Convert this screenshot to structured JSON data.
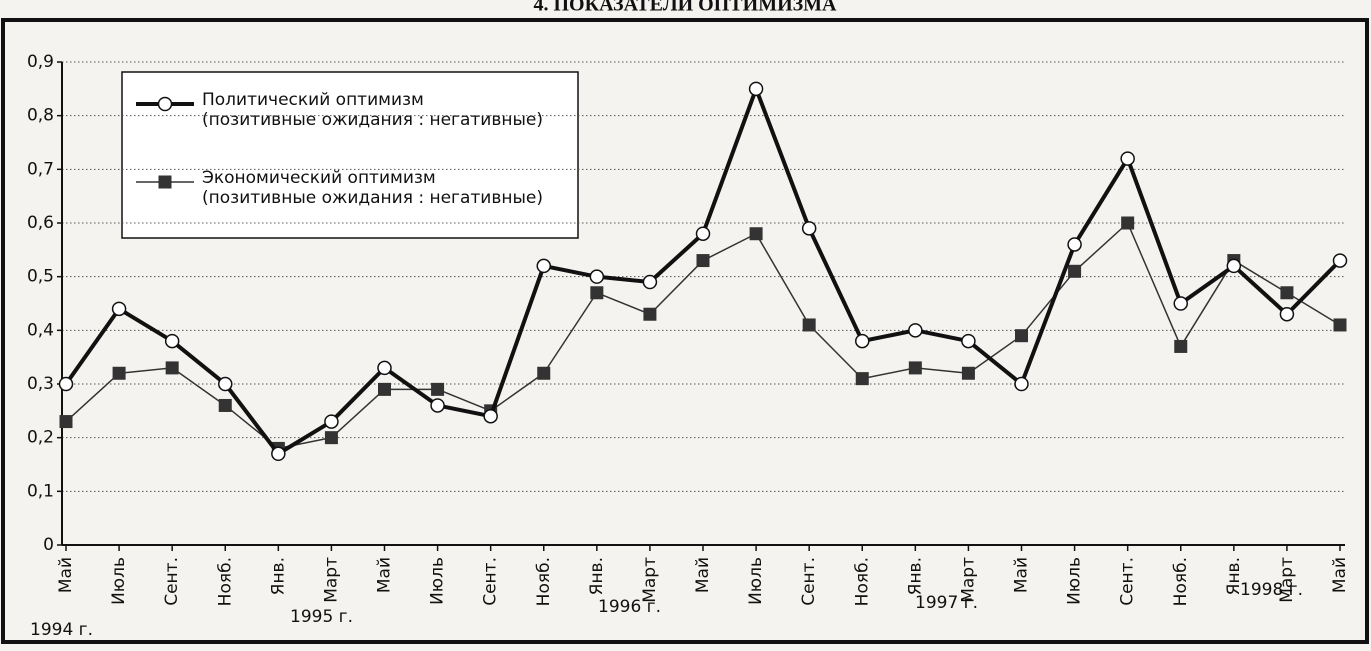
{
  "chart_data": {
    "type": "line",
    "title": "4. ПОКАЗАТЕЛИ ОПТИМИЗМА",
    "categories": [
      "Май",
      "Июль",
      "Сент.",
      "Нояб.",
      "Янв.",
      "Март",
      "Май",
      "Июль",
      "Сент.",
      "Нояб.",
      "Янв.",
      "Март",
      "Май",
      "Июль",
      "Сент.",
      "Нояб.",
      "Янв.",
      "Март",
      "Май",
      "Июль",
      "Сент.",
      "Нояб.",
      "Янв.",
      "Март",
      "Май"
    ],
    "series": [
      {
        "name": "Политический оптимизм",
        "description": "(позитивные ожидания : негативные)",
        "color": "#111111",
        "marker": "circle",
        "values": [
          0.3,
          0.44,
          0.38,
          0.3,
          0.17,
          0.23,
          0.33,
          0.26,
          0.24,
          0.52,
          0.5,
          0.49,
          0.58,
          0.85,
          0.59,
          0.38,
          0.4,
          0.38,
          0.3,
          0.56,
          0.72,
          0.45,
          0.52,
          0.43,
          0.53
        ]
      },
      {
        "name": "Экономический оптимизм",
        "description": "(позитивные ожидания : негативные)",
        "color": "#333333",
        "marker": "square",
        "values": [
          0.23,
          0.32,
          0.33,
          0.26,
          0.18,
          0.2,
          0.29,
          0.29,
          0.25,
          0.32,
          0.47,
          0.43,
          0.53,
          0.58,
          0.41,
          0.31,
          0.33,
          0.32,
          0.39,
          0.51,
          0.6,
          0.37,
          0.53,
          0.47,
          0.41
        ]
      }
    ],
    "annotations": [
      "1994 г.",
      "1995 г.",
      "1996 г.",
      "1997 г.",
      "1998 г."
    ],
    "ylim": [
      0,
      0.9
    ],
    "yticks": [
      0,
      {
        "value": 0.1,
        "label": "0,1"
      },
      {
        "value": 0.2,
        "label": "0,2"
      },
      {
        "value": 0.3,
        "label": "0,3"
      },
      {
        "value": 0.4,
        "label": "0,4"
      },
      {
        "value": 0.5,
        "label": "0,5"
      },
      {
        "value": 0.6,
        "label": "0,6"
      },
      {
        "value": 0.7,
        "label": "0,7"
      },
      {
        "value": 0.8,
        "label": "0,8"
      },
      {
        "value": 0.9,
        "label": "0,9"
      }
    ],
    "grid": true
  }
}
